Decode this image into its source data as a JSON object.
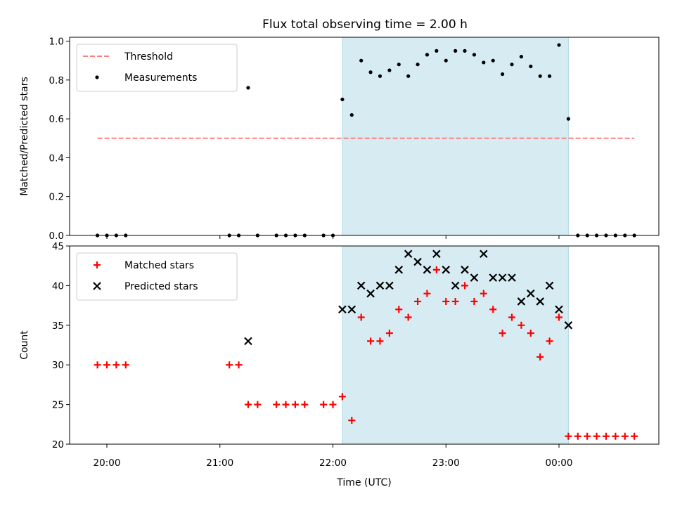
{
  "title": "Flux total observing time = 2.00 h",
  "chart_data": [
    {
      "type": "scatter",
      "ylabel": "Matched/Predicted stars",
      "ylim": [
        0,
        1.02
      ],
      "yticks": [
        "0.0",
        "0.2",
        "0.4",
        "0.6",
        "0.8",
        "1.0"
      ],
      "shaded_interval": [
        "22:05",
        "00:05"
      ],
      "shaded_color": "#add8e6",
      "legend_location": "upper-left",
      "series": [
        {
          "name": "Threshold",
          "style": "dashed-line",
          "color": "#ff8080",
          "x": [
            "19:55",
            "00:40"
          ],
          "y": [
            0.5,
            0.5
          ]
        },
        {
          "name": "Measurements",
          "style": "dot",
          "color": "#000000",
          "x": [
            "19:55",
            "20:00",
            "20:05",
            "20:10",
            "21:05",
            "21:10",
            "21:15",
            "21:20",
            "21:30",
            "21:35",
            "21:40",
            "21:45",
            "21:55",
            "22:00",
            "22:05",
            "22:10",
            "22:15",
            "22:20",
            "22:25",
            "22:30",
            "22:35",
            "22:40",
            "22:45",
            "22:50",
            "22:55",
            "23:00",
            "23:05",
            "23:10",
            "23:15",
            "23:20",
            "23:25",
            "23:30",
            "23:35",
            "23:40",
            "23:45",
            "23:50",
            "23:55",
            "00:00",
            "00:05",
            "00:10",
            "00:15",
            "00:20",
            "00:25",
            "00:30",
            "00:35",
            "00:40"
          ],
          "y": [
            0.0,
            0.0,
            0.0,
            0.0,
            0.0,
            0.0,
            0.76,
            0.0,
            0.0,
            0.0,
            0.0,
            0.0,
            0.0,
            0.0,
            0.7,
            0.62,
            0.9,
            0.84,
            0.82,
            0.85,
            0.88,
            0.82,
            0.88,
            0.93,
            0.95,
            0.9,
            0.95,
            0.95,
            0.93,
            0.89,
            0.9,
            0.83,
            0.88,
            0.92,
            0.87,
            0.82,
            0.82,
            0.98,
            0.6,
            0.0,
            0.0,
            0.0,
            0.0,
            0.0,
            0.0,
            0.0
          ]
        }
      ]
    },
    {
      "type": "scatter",
      "xlabel": "Time (UTC)",
      "ylabel": "Count",
      "ylim": [
        20,
        45
      ],
      "yticks": [
        "20",
        "25",
        "30",
        "35",
        "40",
        "45"
      ],
      "xticks": [
        "20:00",
        "21:00",
        "22:00",
        "23:00",
        "00:00"
      ],
      "shaded_interval": [
        "22:05",
        "00:05"
      ],
      "shaded_color": "#add8e6",
      "legend_location": "upper-left",
      "series": [
        {
          "name": "Matched stars",
          "style": "plus",
          "color": "#ff0000",
          "x": [
            "19:55",
            "20:00",
            "20:05",
            "20:10",
            "21:05",
            "21:10",
            "21:15",
            "21:20",
            "21:30",
            "21:35",
            "21:40",
            "21:45",
            "21:55",
            "22:00",
            "22:05",
            "22:10",
            "22:15",
            "22:20",
            "22:25",
            "22:30",
            "22:35",
            "22:40",
            "22:45",
            "22:50",
            "22:55",
            "23:00",
            "23:05",
            "23:10",
            "23:15",
            "23:20",
            "23:25",
            "23:30",
            "23:35",
            "23:40",
            "23:45",
            "23:50",
            "23:55",
            "00:00",
            "00:05",
            "00:10",
            "00:15",
            "00:20",
            "00:25",
            "00:30",
            "00:35",
            "00:40"
          ],
          "y": [
            30,
            30,
            30,
            30,
            30,
            30,
            25,
            25,
            25,
            25,
            25,
            25,
            25,
            25,
            26,
            23,
            36,
            33,
            33,
            34,
            37,
            36,
            38,
            39,
            42,
            38,
            38,
            40,
            38,
            39,
            37,
            34,
            36,
            35,
            34,
            31,
            33,
            36,
            21,
            21,
            21,
            21,
            21,
            21,
            21,
            21
          ]
        },
        {
          "name": "Predicted stars",
          "style": "x",
          "color": "#000000",
          "x": [
            "21:15",
            "22:05",
            "22:10",
            "22:15",
            "22:20",
            "22:25",
            "22:30",
            "22:35",
            "22:40",
            "22:45",
            "22:50",
            "22:55",
            "23:00",
            "23:05",
            "23:10",
            "23:15",
            "23:20",
            "23:25",
            "23:30",
            "23:35",
            "23:40",
            "23:45",
            "23:50",
            "23:55",
            "00:00",
            "00:05"
          ],
          "y": [
            33,
            37,
            37,
            40,
            39,
            40,
            40,
            42,
            44,
            43,
            42,
            44,
            42,
            40,
            42,
            41,
            44,
            41,
            41,
            41,
            38,
            39,
            38,
            40,
            37,
            35
          ]
        }
      ]
    }
  ]
}
